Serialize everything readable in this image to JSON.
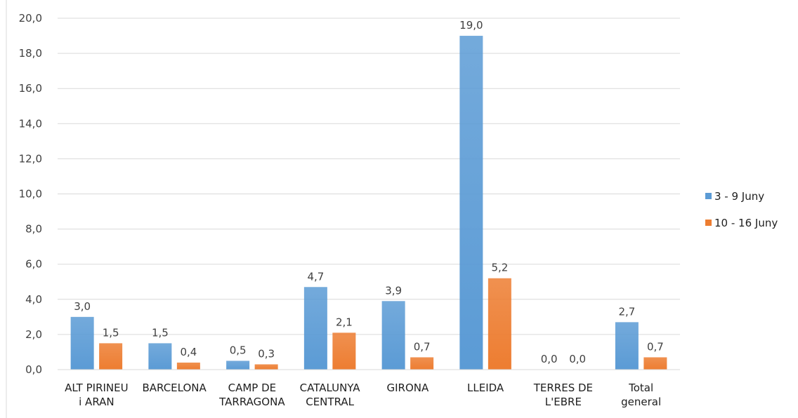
{
  "chart_data": {
    "type": "bar",
    "categories": [
      [
        "ALT PIRINEU",
        "i ARAN"
      ],
      [
        "BARCELONA"
      ],
      [
        "CAMP DE",
        "TARRAGONA"
      ],
      [
        "CATALUNYA",
        "CENTRAL"
      ],
      [
        "GIRONA"
      ],
      [
        "LLEIDA"
      ],
      [
        "TERRES DE",
        "L'EBRE"
      ],
      [
        "Total",
        "general"
      ]
    ],
    "series": [
      {
        "name": "3 - 9 Juny",
        "color": "#5b9bd5",
        "values": [
          3.0,
          1.5,
          0.5,
          4.7,
          3.9,
          19.0,
          0.0,
          2.7
        ],
        "labels": [
          "3,0",
          "1,5",
          "0,5",
          "4,7",
          "3,9",
          "19,0",
          "0,0",
          "2,7"
        ]
      },
      {
        "name": "10 - 16 Juny",
        "color": "#ed7d31",
        "values": [
          1.5,
          0.4,
          0.3,
          2.1,
          0.7,
          5.2,
          0.0,
          0.7
        ],
        "labels": [
          "1,5",
          "0,4",
          "0,3",
          "2,1",
          "0,7",
          "5,2",
          "0,0",
          "0,7"
        ]
      }
    ],
    "ylim": [
      0,
      20
    ],
    "yticks": [
      0,
      2,
      4,
      6,
      8,
      10,
      12,
      14,
      16,
      18,
      20
    ],
    "ytick_labels": [
      "0,0",
      "2,0",
      "4,0",
      "6,0",
      "8,0",
      "10,0",
      "12,0",
      "14,0",
      "16,0",
      "18,0",
      "20,0"
    ],
    "title": "",
    "xlabel": "",
    "ylabel": "",
    "grid": true,
    "legend_position": "right",
    "grid_color": "#d9d9d9"
  }
}
